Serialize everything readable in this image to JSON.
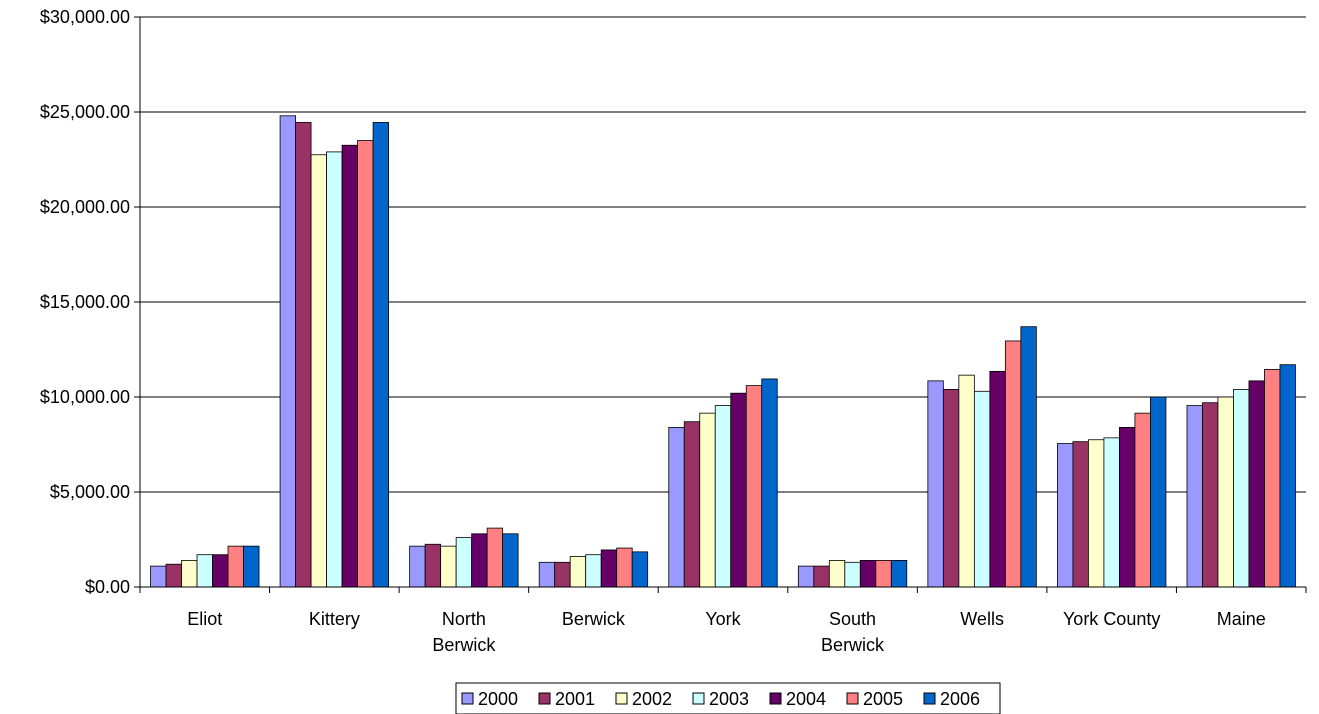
{
  "chart_data": {
    "type": "bar",
    "categories": [
      "Eliot",
      "Kittery",
      "North Berwick",
      "Berwick",
      "York",
      "South Berwick",
      "Wells",
      "York County",
      "Maine"
    ],
    "category_lines": [
      [
        "Eliot"
      ],
      [
        "Kittery"
      ],
      [
        "North",
        "Berwick"
      ],
      [
        "Berwick"
      ],
      [
        "York"
      ],
      [
        "South",
        "Berwick"
      ],
      [
        "Wells"
      ],
      [
        "York County"
      ],
      [
        "Maine"
      ]
    ],
    "series": [
      {
        "name": "2000",
        "color": "#9999FF",
        "values": [
          1100,
          24800,
          2150,
          1300,
          8400,
          1100,
          10850,
          7550,
          9550
        ]
      },
      {
        "name": "2001",
        "color": "#993366",
        "values": [
          1200,
          24450,
          2250,
          1300,
          8700,
          1100,
          10400,
          7650,
          9700
        ]
      },
      {
        "name": "2002",
        "color": "#FFFFCC",
        "values": [
          1400,
          22750,
          2150,
          1600,
          9150,
          1400,
          11150,
          7750,
          10000
        ]
      },
      {
        "name": "2003",
        "color": "#CCFFFF",
        "values": [
          1700,
          22900,
          2600,
          1700,
          9550,
          1300,
          10300,
          7850,
          10400
        ]
      },
      {
        "name": "2004",
        "color": "#660066",
        "values": [
          1700,
          23250,
          2800,
          1950,
          10200,
          1400,
          11350,
          8400,
          10850
        ]
      },
      {
        "name": "2005",
        "color": "#FF8080",
        "values": [
          2150,
          23500,
          3100,
          2050,
          10600,
          1400,
          12950,
          9150,
          11450
        ]
      },
      {
        "name": "2006",
        "color": "#0066CC",
        "values": [
          2150,
          24450,
          2800,
          1850,
          10950,
          1400,
          13700,
          10000,
          11700
        ]
      }
    ],
    "yticks": [
      "$0.00",
      "$5,000.00",
      "$10,000.00",
      "$15,000.00",
      "$20,000.00",
      "$25,000.00",
      "$30,000.00"
    ],
    "ylim": [
      0,
      30000
    ],
    "ystep": 5000,
    "title": "",
    "xlabel": "",
    "ylabel": "",
    "grid": true,
    "legend_position": "bottom"
  }
}
